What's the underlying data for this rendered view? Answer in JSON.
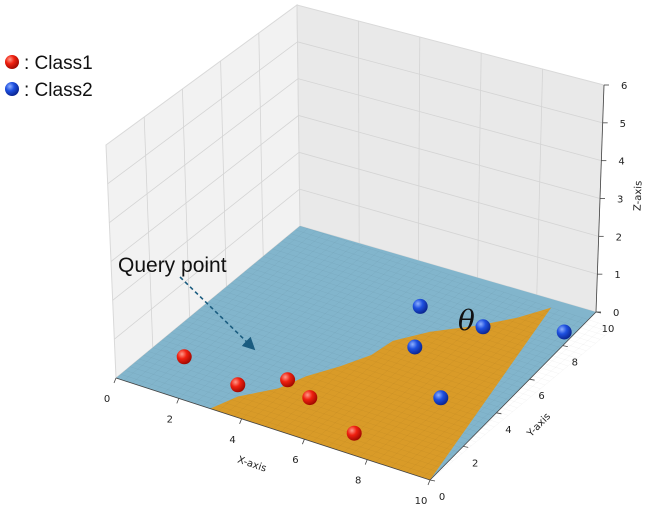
{
  "chart_data": {
    "type": "scatter",
    "projection": "3d",
    "xlabel": "X-axis",
    "ylabel": "Y-axis",
    "zlabel": "Z-axis",
    "xlim": [
      0,
      10
    ],
    "ylim": [
      0,
      10
    ],
    "zlim": [
      0,
      6
    ],
    "x_ticks": [
      "0",
      "2",
      "4",
      "6",
      "8",
      "10"
    ],
    "y_ticks": [
      "0",
      "2",
      "4",
      "6",
      "8",
      "10"
    ],
    "z_ticks": [
      "0",
      "1",
      "2",
      "3",
      "4",
      "5",
      "6"
    ],
    "grid": true,
    "legend_placement": "top-left",
    "series": [
      {
        "name": "Class1",
        "color": "#e8140f",
        "points": [
          [
            1,
            2,
            0
          ],
          [
            3,
            1.5,
            0
          ],
          [
            4,
            2.5,
            0
          ],
          [
            5,
            2,
            0
          ],
          [
            7,
            1,
            0
          ]
        ]
      },
      {
        "name": "Class2",
        "color": "#1a45d6",
        "points": [
          [
            5,
            8,
            0
          ],
          [
            6,
            6,
            0
          ],
          [
            7,
            8,
            0
          ],
          [
            8,
            4,
            0
          ],
          [
            9,
            9,
            0
          ]
        ]
      }
    ],
    "legend": [
      {
        "marker": "red-sphere",
        "label": ": Class1"
      },
      {
        "marker": "blue-sphere",
        "label": ": Class2"
      }
    ],
    "decision_regions": [
      {
        "region": "class1",
        "color": "#d99b28"
      },
      {
        "region": "class2",
        "color": "#82b5cc"
      }
    ],
    "annotations": {
      "query_label": "Query point",
      "query_target": [
        4,
        2.5,
        0
      ],
      "region_symbol": "θ"
    }
  }
}
